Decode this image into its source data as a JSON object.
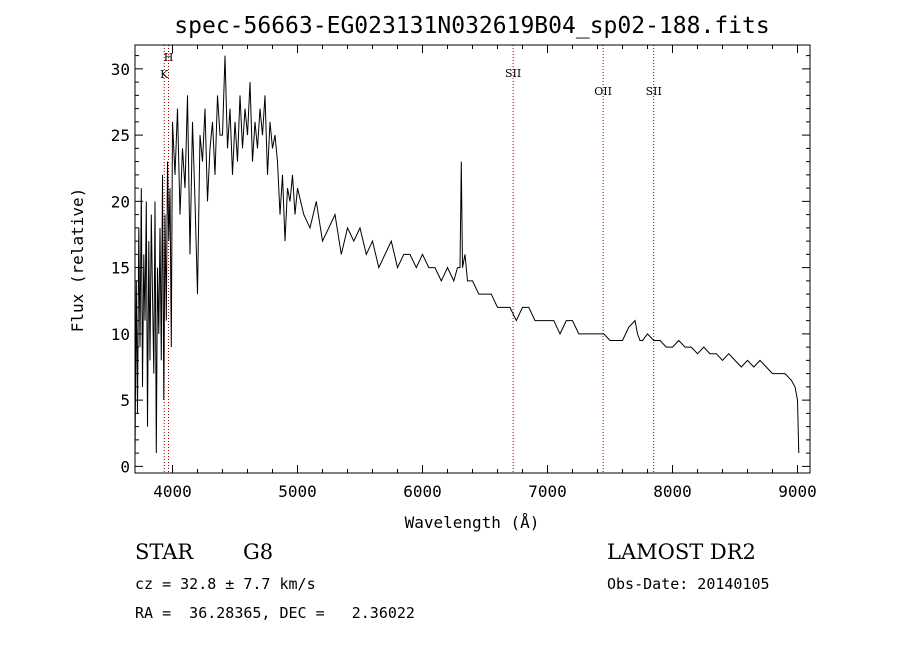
{
  "chart_data": {
    "type": "line",
    "title": "spec-56663-EG023131N032619B04_sp02-188.fits",
    "xlabel": "Wavelength (Å)",
    "ylabel": "Flux (relative)",
    "xlim": [
      3700,
      9100
    ],
    "ylim": [
      -0.5,
      31.8
    ],
    "xticks": [
      4000,
      5000,
      6000,
      7000,
      8000,
      9000
    ],
    "yticks": [
      0,
      5,
      10,
      15,
      20,
      25,
      30
    ],
    "line_color": "#000000",
    "marker_color": "#8b0000",
    "spectral_lines": [
      {
        "name": "H",
        "wavelength": 3968
      },
      {
        "name": "K",
        "wavelength": 3934
      },
      {
        "name": "SII",
        "wavelength": 6725
      },
      {
        "name": "OII",
        "wavelength": 7445
      },
      {
        "name": "SII",
        "wavelength": 7850
      }
    ],
    "series": [
      {
        "name": "flux",
        "x": [
          3700,
          3710,
          3720,
          3730,
          3740,
          3750,
          3760,
          3770,
          3780,
          3790,
          3800,
          3810,
          3820,
          3830,
          3840,
          3850,
          3860,
          3870,
          3880,
          3890,
          3900,
          3910,
          3920,
          3930,
          3940,
          3950,
          3960,
          3970,
          3980,
          3990,
          4000,
          4020,
          4040,
          4060,
          4080,
          4100,
          4120,
          4140,
          4160,
          4180,
          4200,
          4220,
          4240,
          4260,
          4280,
          4300,
          4320,
          4340,
          4360,
          4380,
          4400,
          4420,
          4440,
          4460,
          4480,
          4500,
          4520,
          4540,
          4560,
          4580,
          4600,
          4620,
          4640,
          4660,
          4680,
          4700,
          4720,
          4740,
          4760,
          4780,
          4800,
          4820,
          4840,
          4860,
          4880,
          4900,
          4920,
          4940,
          4960,
          4980,
          5000,
          5050,
          5100,
          5150,
          5200,
          5250,
          5300,
          5350,
          5400,
          5450,
          5500,
          5550,
          5600,
          5650,
          5700,
          5750,
          5800,
          5850,
          5900,
          5950,
          6000,
          6050,
          6100,
          6150,
          6200,
          6250,
          6280,
          6300,
          6310,
          6320,
          6340,
          6360,
          6400,
          6450,
          6500,
          6550,
          6600,
          6650,
          6700,
          6750,
          6800,
          6850,
          6900,
          6950,
          7000,
          7050,
          7100,
          7150,
          7200,
          7250,
          7300,
          7350,
          7400,
          7450,
          7500,
          7550,
          7600,
          7650,
          7700,
          7720,
          7740,
          7760,
          7800,
          7850,
          7900,
          7950,
          8000,
          8050,
          8100,
          8150,
          8200,
          8250,
          8300,
          8350,
          8400,
          8450,
          8500,
          8550,
          8600,
          8650,
          8700,
          8750,
          8800,
          8850,
          8900,
          8950,
          8980,
          9000,
          9010
        ],
        "y": [
          0.5,
          14,
          4,
          18,
          9,
          21,
          6,
          16,
          11,
          20,
          3,
          17,
          8,
          19,
          13,
          7,
          20,
          1,
          15,
          10,
          18,
          8,
          22,
          5,
          19,
          11,
          23,
          17,
          21,
          9,
          26,
          22,
          27,
          19,
          24,
          21,
          28,
          16,
          26,
          20,
          13,
          25,
          23,
          27,
          20,
          24,
          26,
          22,
          28,
          25,
          25,
          31,
          24,
          27,
          22,
          26,
          23,
          28,
          24,
          27,
          25,
          29,
          23,
          26,
          24,
          27,
          25,
          28,
          22,
          26,
          24,
          25,
          23,
          19,
          22,
          17,
          21,
          20,
          22,
          19,
          21,
          19,
          18,
          20,
          17,
          18,
          19,
          16,
          18,
          17,
          18,
          16,
          17,
          15,
          16,
          17,
          15,
          16,
          16,
          15,
          16,
          15,
          15,
          14,
          15,
          14,
          15,
          15,
          23,
          15,
          16,
          14,
          14,
          13,
          13,
          13,
          12,
          12,
          12,
          11,
          12,
          12,
          11,
          11,
          11,
          11,
          10,
          11,
          11,
          10,
          10,
          10,
          10,
          10,
          9.5,
          9.5,
          9.5,
          10.5,
          11,
          10,
          9.5,
          9.5,
          10,
          9.5,
          9.5,
          9,
          9,
          9.5,
          9,
          9,
          8.5,
          9,
          8.5,
          8.5,
          8,
          8.5,
          8,
          7.5,
          8,
          7.5,
          8,
          7.5,
          7,
          7,
          7,
          6.5,
          6,
          5,
          1
        ]
      }
    ]
  },
  "info": {
    "class": "STAR",
    "subclass": "G8",
    "survey": "LAMOST DR2",
    "cz": "cz = 32.8 ± 7.7 km/s",
    "obsdate": "Obs-Date: 20140105",
    "coords": "RA =  36.28365, DEC =   2.36022"
  }
}
